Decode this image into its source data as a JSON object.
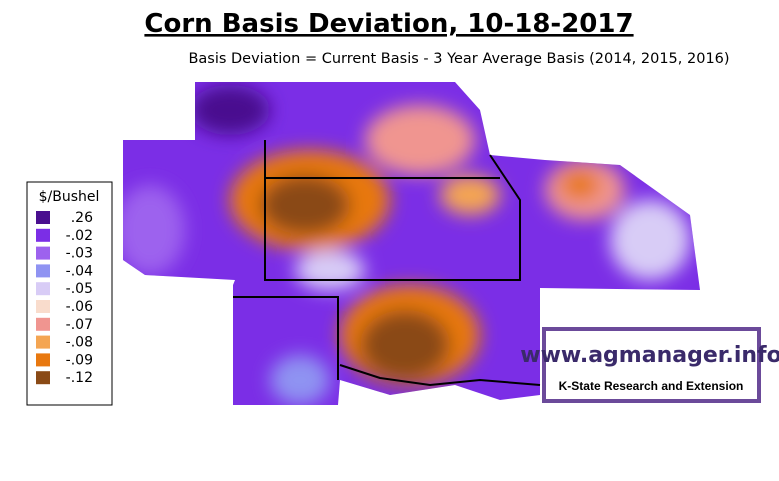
{
  "header": {
    "title": "Corn Basis Deviation, 10-18-2017",
    "subtitle": "Basis Deviation = Current Basis - 3 Year Average Basis (2014, 2015, 2016)"
  },
  "legend": {
    "title": "$/Bushel",
    "items": [
      {
        "label": ".26",
        "color": "#4a0f8f"
      },
      {
        "label": "-.02",
        "color": "#7b2ee6"
      },
      {
        "label": "-.03",
        "color": "#9d62ee"
      },
      {
        "label": "-.04",
        "color": "#8f93f2"
      },
      {
        "label": "-.05",
        "color": "#d8ccf6"
      },
      {
        "label": "-.06",
        "color": "#f9dccc"
      },
      {
        "label": "-.07",
        "color": "#f09590"
      },
      {
        "label": "-.08",
        "color": "#f4a552"
      },
      {
        "label": "-.09",
        "color": "#e8780f"
      },
      {
        "label": "-.12",
        "color": "#8a4a16"
      }
    ]
  },
  "branding": {
    "url": "www.agmanager.info",
    "org": "K-State Research and Extension"
  }
}
